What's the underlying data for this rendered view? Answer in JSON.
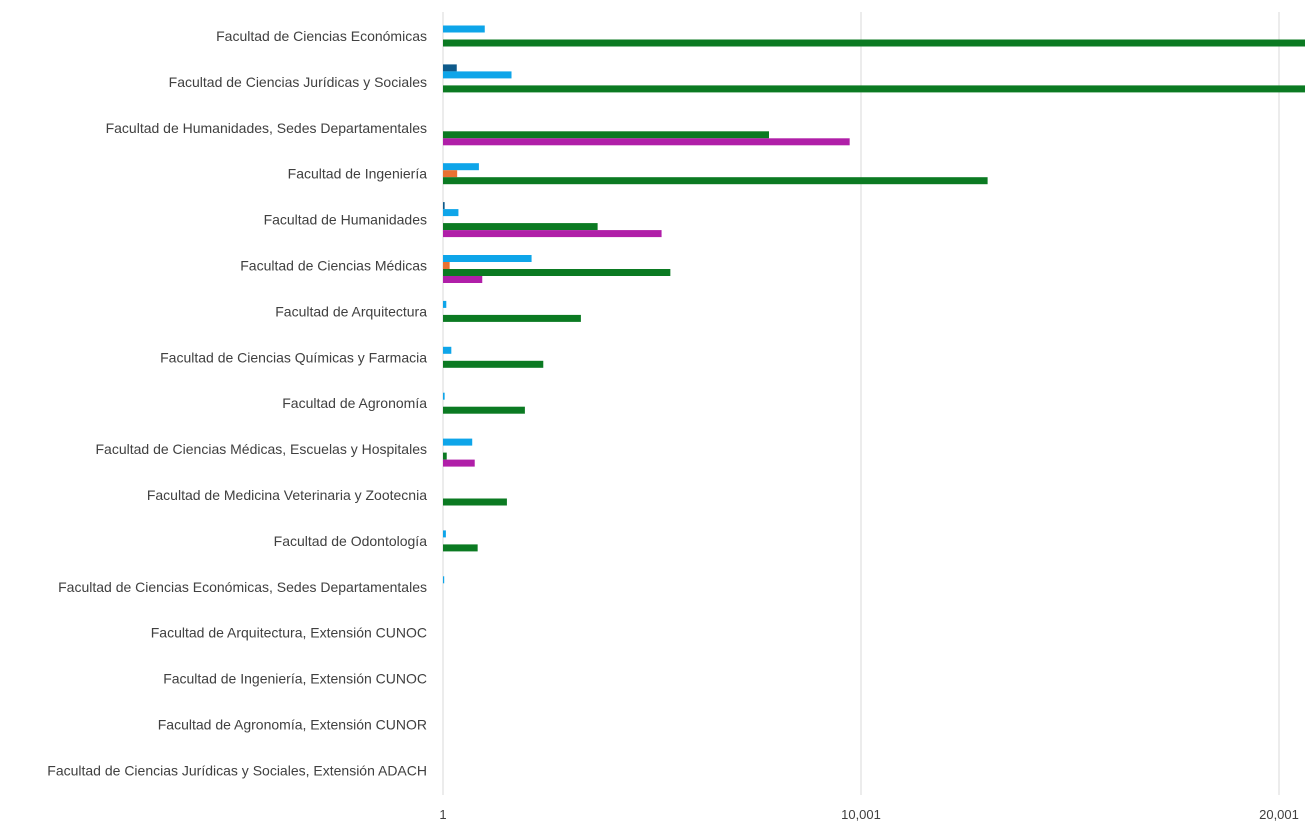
{
  "chart_data": {
    "type": "bar",
    "orientation": "horizontal",
    "categories": [
      "Facultad de Ciencias Económicas",
      "Facultad de Ciencias Jurídicas y Sociales",
      "Facultad de Humanidades, Sedes Departamentales",
      "Facultad de Ingeniería",
      "Facultad de Humanidades",
      "Facultad de Ciencias Médicas",
      "Facultad de Arquitectura",
      "Facultad de Ciencias Químicas y Farmacia",
      "Facultad de Agronomía",
      "Facultad de Ciencias Médicas, Escuelas y Hospitales",
      "Facultad de Medicina Veterinaria y Zootecnia",
      "Facultad de Odontología",
      "Facultad de Ciencias Económicas, Sedes Departamentales",
      "Facultad de Arquitectura, Extensión CUNOC",
      "Facultad de Ingeniería, Extensión CUNOC",
      "Facultad de Agronomía, Extensión CUNOR",
      "Facultad de Ciencias Jurídicas y Sociales, Extensión ADACH"
    ],
    "series": [
      {
        "color": "#0e5a8a",
        "values": [
          0,
          330,
          0,
          0,
          40,
          0,
          0,
          0,
          0,
          0,
          0,
          0,
          0,
          0,
          0,
          0,
          0
        ]
      },
      {
        "color": "#0ea5e9",
        "values": [
          1000,
          1640,
          0,
          860,
          370,
          2120,
          80,
          200,
          40,
          700,
          0,
          70,
          20,
          0,
          0,
          0,
          0
        ]
      },
      {
        "color": "#e97132",
        "values": [
          0,
          0,
          0,
          340,
          0,
          160,
          0,
          0,
          0,
          0,
          0,
          0,
          0,
          0,
          0,
          0,
          0
        ]
      },
      {
        "color": "#0b7a22",
        "values": [
          21500,
          21500,
          7800,
          13030,
          3700,
          5440,
          3300,
          2400,
          1960,
          90,
          1530,
          830,
          0,
          0,
          0,
          0,
          0
        ]
      },
      {
        "color": "#b01fa8",
        "values": [
          0,
          0,
          9730,
          0,
          5230,
          940,
          0,
          0,
          0,
          760,
          0,
          0,
          0,
          0,
          0,
          0,
          0
        ]
      }
    ],
    "x_axis": {
      "ticks": [
        "1",
        "10,001",
        "20,001"
      ],
      "tick_values": [
        1,
        10001,
        20001
      ],
      "range": [
        1,
        20601
      ]
    },
    "grid": true,
    "legend": false
  }
}
